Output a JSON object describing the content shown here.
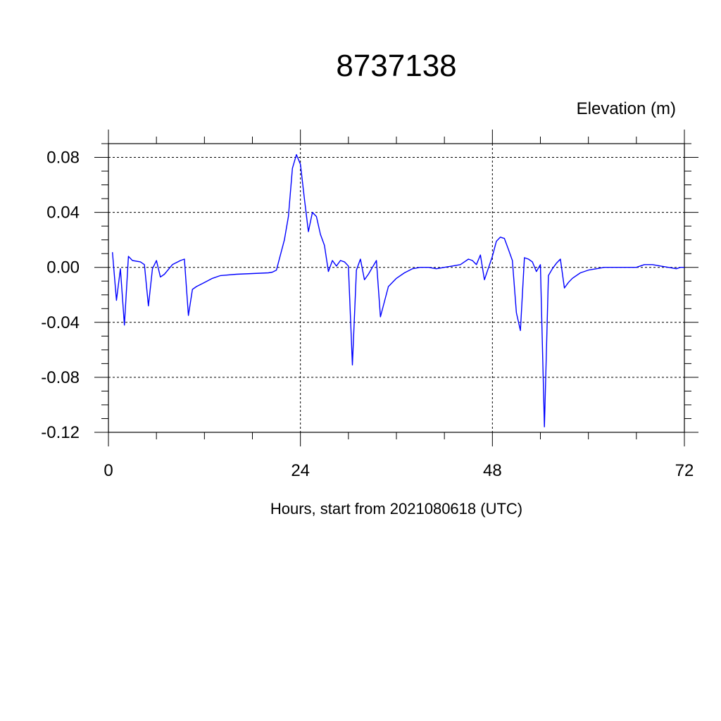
{
  "chart_data": {
    "type": "line",
    "title": "8737138",
    "unit_label": "Elevation (m)",
    "xlabel": "Hours, start from 2021080618 (UTC)",
    "xlim": [
      0,
      72
    ],
    "ylim": [
      -0.12,
      0.09
    ],
    "x_ticks": [
      0,
      24,
      48,
      72
    ],
    "x_tick_labels": [
      "0",
      "24",
      "48",
      "72"
    ],
    "y_ticks": [
      0.08,
      0.04,
      0.0,
      -0.04,
      -0.08,
      -0.12
    ],
    "y_tick_labels": [
      "0.08",
      "0.04",
      "0.00",
      "-0.04",
      "-0.08",
      "-0.12"
    ],
    "grid": true,
    "series": [
      {
        "color": "#0000ff",
        "x": [
          0.5,
          1.0,
          1.5,
          2.0,
          2.5,
          3.0,
          4.0,
          4.5,
          5.0,
          5.5,
          6.0,
          6.5,
          7.0,
          8.0,
          9.0,
          9.5,
          10.0,
          10.5,
          11.0,
          12.0,
          13.0,
          14.0,
          16.0,
          18.0,
          20.0,
          20.5,
          21.0,
          22.0,
          22.5,
          23.0,
          23.5,
          24.0,
          24.5,
          25.0,
          25.5,
          26.0,
          26.5,
          27.0,
          27.5,
          28.0,
          28.5,
          29.0,
          29.5,
          30.0,
          30.5,
          31.0,
          31.5,
          32.0,
          32.5,
          33.0,
          33.5,
          34.0,
          35.0,
          36.0,
          37.0,
          38.0,
          39.0,
          40.0,
          41.0,
          42.0,
          43.0,
          44.0,
          44.5,
          45.0,
          45.5,
          46.0,
          46.5,
          47.0,
          48.0,
          48.5,
          49.0,
          49.5,
          50.0,
          50.5,
          51.0,
          51.5,
          52.0,
          52.5,
          53.0,
          53.5,
          54.0,
          54.5,
          55.0,
          55.5,
          56.0,
          56.5,
          57.0,
          57.5,
          58.0,
          59.0,
          60.0,
          61.0,
          62.0,
          63.0,
          64.0,
          65.0,
          66.0,
          67.0,
          68.0,
          69.0,
          70.0,
          71.0,
          71.5,
          72.0
        ],
        "y": [
          0.011,
          -0.024,
          -0.001,
          -0.042,
          0.008,
          0.005,
          0.004,
          0.002,
          -0.028,
          -0.001,
          0.005,
          -0.007,
          -0.005,
          0.002,
          0.005,
          0.006,
          -0.035,
          -0.016,
          -0.014,
          -0.011,
          -0.008,
          -0.006,
          -0.005,
          -0.0045,
          -0.004,
          -0.0035,
          -0.002,
          0.02,
          0.037,
          0.072,
          0.082,
          0.075,
          0.05,
          0.026,
          0.04,
          0.037,
          0.024,
          0.016,
          -0.003,
          0.005,
          0.001,
          0.005,
          0.004,
          0.001,
          -0.071,
          -0.002,
          0.006,
          -0.009,
          -0.005,
          0.0,
          0.005,
          -0.036,
          -0.014,
          -0.008,
          -0.004,
          -0.001,
          0.0,
          0.0,
          -0.001,
          0.0,
          0.001,
          0.002,
          0.004,
          0.006,
          0.005,
          0.002,
          0.009,
          -0.009,
          0.008,
          0.019,
          0.022,
          0.021,
          0.013,
          0.005,
          -0.033,
          -0.046,
          0.007,
          0.006,
          0.004,
          -0.003,
          0.002,
          -0.116,
          -0.006,
          -0.001,
          0.003,
          0.006,
          -0.015,
          -0.011,
          -0.008,
          -0.004,
          -0.002,
          -0.001,
          0.0,
          0.0,
          0.0,
          0.0,
          0.0,
          0.002,
          0.002,
          0.001,
          0.0,
          -0.001,
          0.0,
          0.0
        ]
      }
    ]
  }
}
